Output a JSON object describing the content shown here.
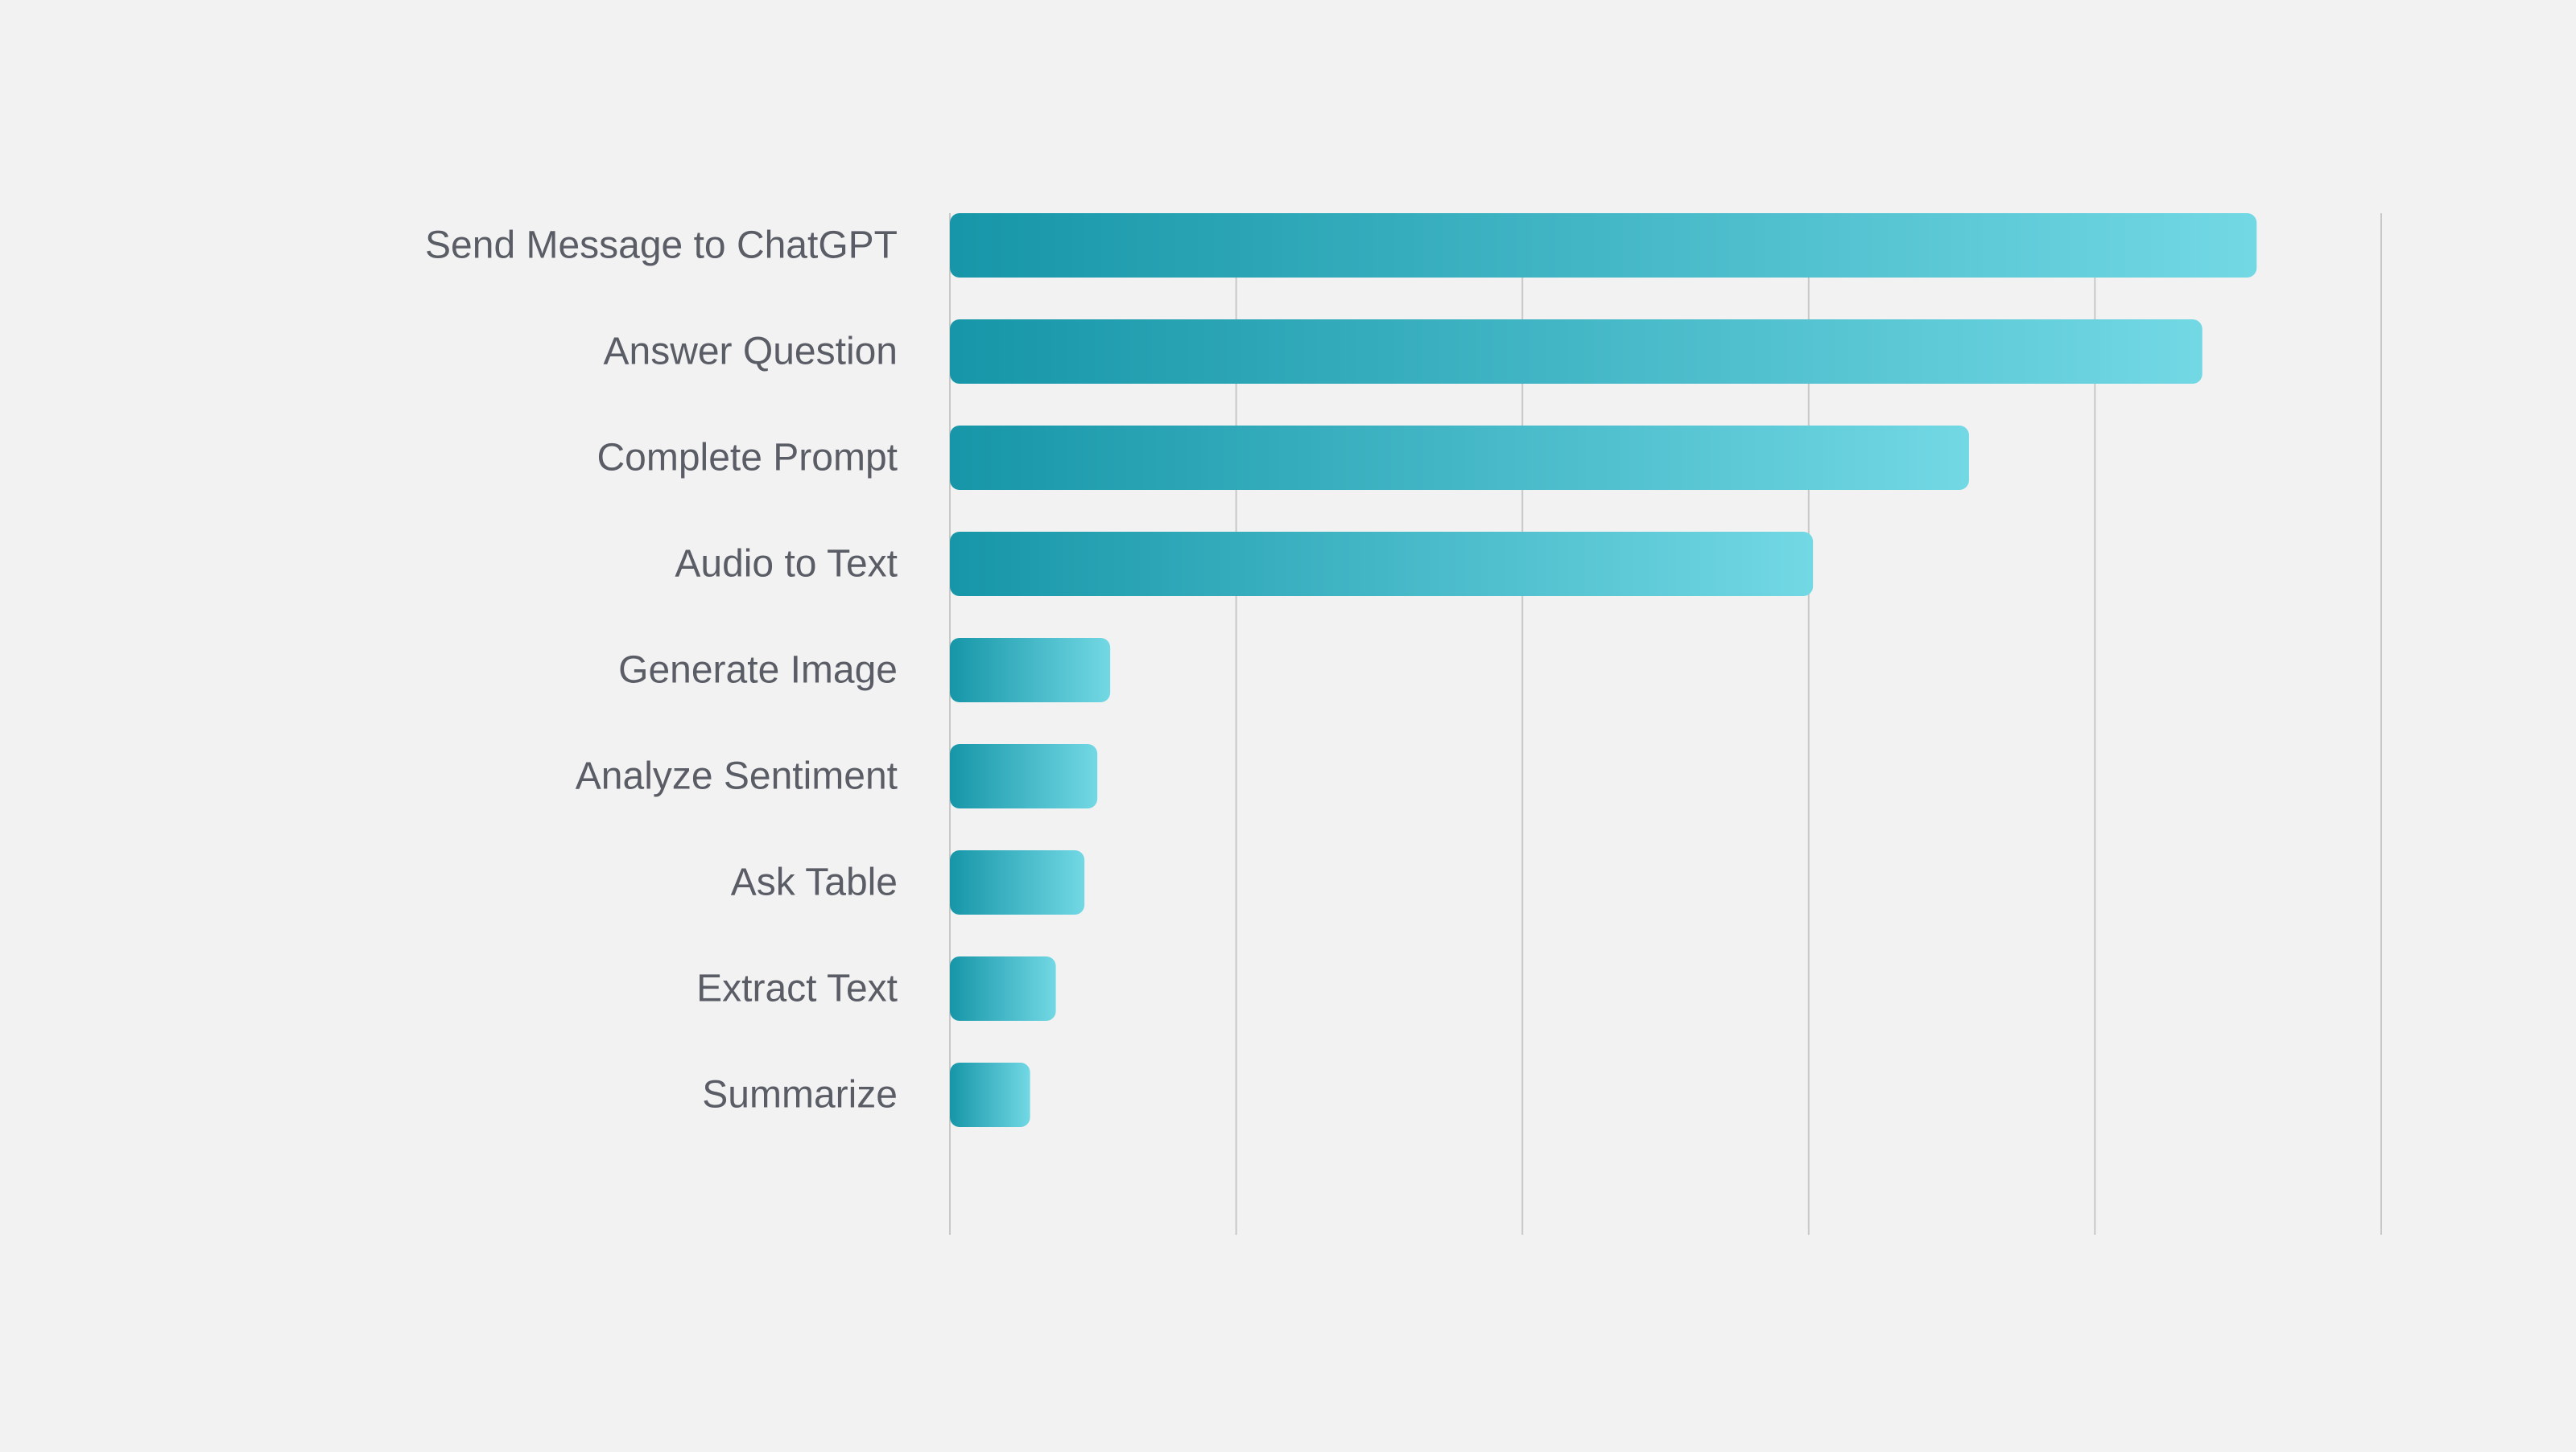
{
  "chart_data": {
    "type": "bar",
    "orientation": "horizontal",
    "categories": [
      "Send Message to ChatGPT",
      "Answer Question",
      "Complete Prompt",
      "Audio to Text",
      "Generate Image",
      "Analyze Sentiment",
      "Ask Table",
      "Extract Text",
      "Summarize"
    ],
    "values": [
      9.13,
      8.75,
      7.12,
      6.03,
      1.12,
      1.03,
      0.94,
      0.74,
      0.56
    ],
    "xlim": [
      0,
      10
    ],
    "x_gridlines": [
      0,
      2,
      4,
      6,
      8,
      10
    ],
    "show_tick_labels": false,
    "grid": true,
    "title": "",
    "xlabel": "",
    "ylabel": "",
    "colors": {
      "background": "#f2f2f2",
      "bar_start": "#1696a8",
      "bar_end": "#72d8e4",
      "grid": "#c8c8c8",
      "label": "#5a5d66"
    }
  }
}
